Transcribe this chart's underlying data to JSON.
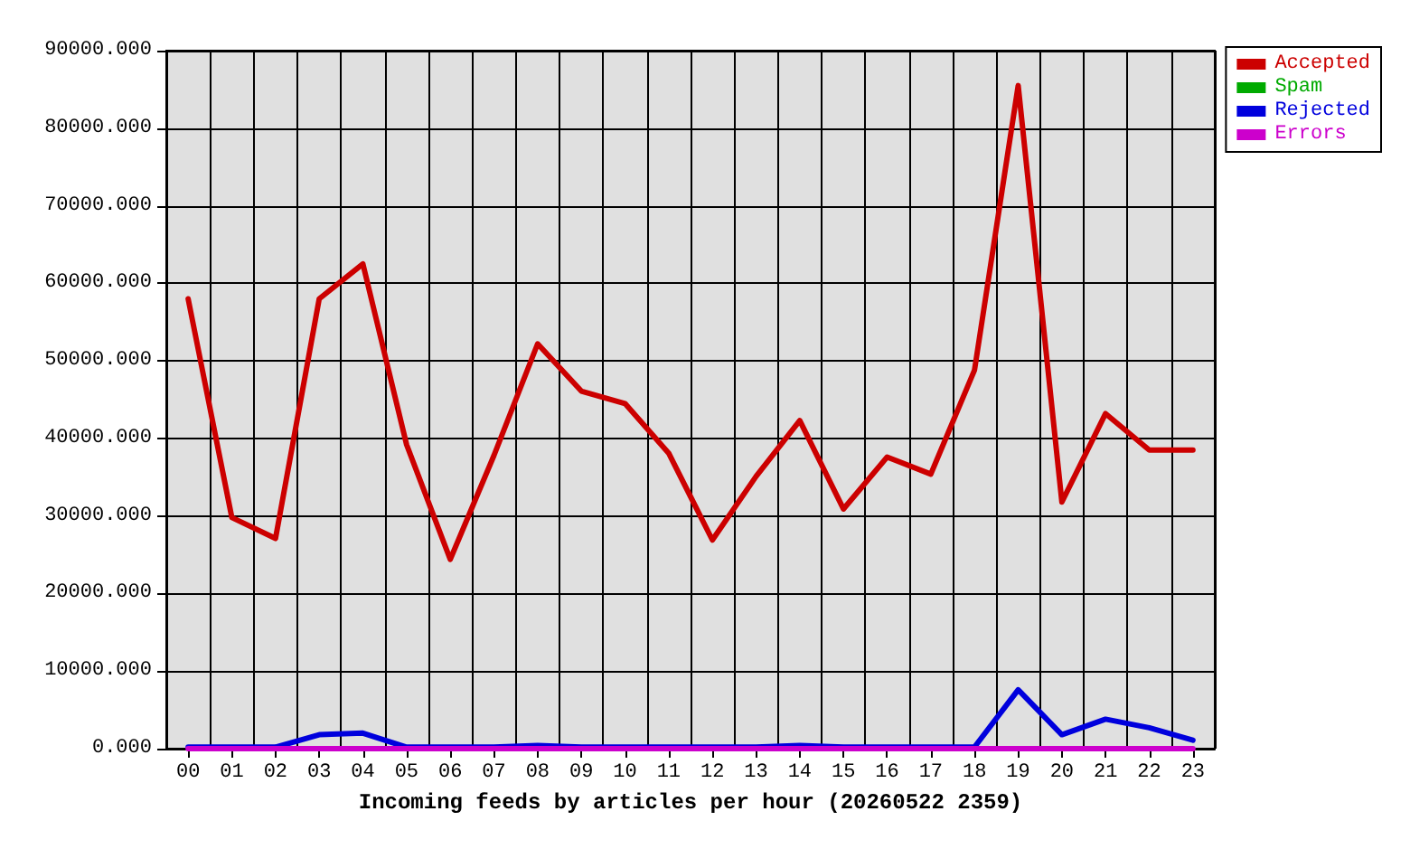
{
  "chart_data": {
    "type": "line",
    "xlabel": "Incoming feeds by articles per hour (20260522 2359)",
    "categories": [
      "00",
      "01",
      "02",
      "03",
      "04",
      "05",
      "06",
      "07",
      "08",
      "09",
      "10",
      "11",
      "12",
      "13",
      "14",
      "15",
      "16",
      "17",
      "18",
      "19",
      "20",
      "21",
      "22",
      "23"
    ],
    "series": [
      {
        "name": "Accepted",
        "color": "#cc0000",
        "values": [
          58000,
          29800,
          27100,
          58000,
          62500,
          39200,
          24400,
          37800,
          52200,
          46100,
          44500,
          38100,
          26900,
          35100,
          42300,
          30900,
          37600,
          35400,
          48800,
          85500,
          31800,
          43200,
          38500,
          38500
        ]
      },
      {
        "name": "Spam",
        "color": "#00aa00",
        "values": [
          null,
          null,
          null,
          null,
          null,
          null,
          null,
          null,
          null,
          null,
          null,
          null,
          null,
          null,
          null,
          null,
          null,
          null,
          null,
          null,
          null,
          null,
          null,
          null
        ]
      },
      {
        "name": "Rejected",
        "color": "#0000dd",
        "values": [
          200,
          200,
          200,
          1800,
          2000,
          200,
          200,
          200,
          400,
          200,
          200,
          200,
          200,
          200,
          400,
          200,
          200,
          200,
          200,
          7600,
          1800,
          3800,
          2700,
          1100
        ]
      },
      {
        "name": "Errors",
        "color": "#cc00cc",
        "values": [
          0,
          0,
          0,
          0,
          0,
          0,
          0,
          0,
          0,
          0,
          0,
          0,
          0,
          0,
          0,
          0,
          0,
          0,
          0,
          0,
          0,
          0,
          0,
          0
        ]
      }
    ],
    "ylim": [
      0,
      90000
    ],
    "yticks": [
      {
        "value": 0,
        "label": "0.000"
      },
      {
        "value": 10000,
        "label": "10000.000"
      },
      {
        "value": 20000,
        "label": "20000.000"
      },
      {
        "value": 30000,
        "label": "30000.000"
      },
      {
        "value": 40000,
        "label": "40000.000"
      },
      {
        "value": 50000,
        "label": "50000.000"
      },
      {
        "value": 60000,
        "label": "60000.000"
      },
      {
        "value": 70000,
        "label": "70000.000"
      },
      {
        "value": 80000,
        "label": "80000.000"
      },
      {
        "value": 90000,
        "label": "90000.000"
      }
    ],
    "grid": true,
    "legend": "top right",
    "marker": "none",
    "line_style": "solid"
  }
}
